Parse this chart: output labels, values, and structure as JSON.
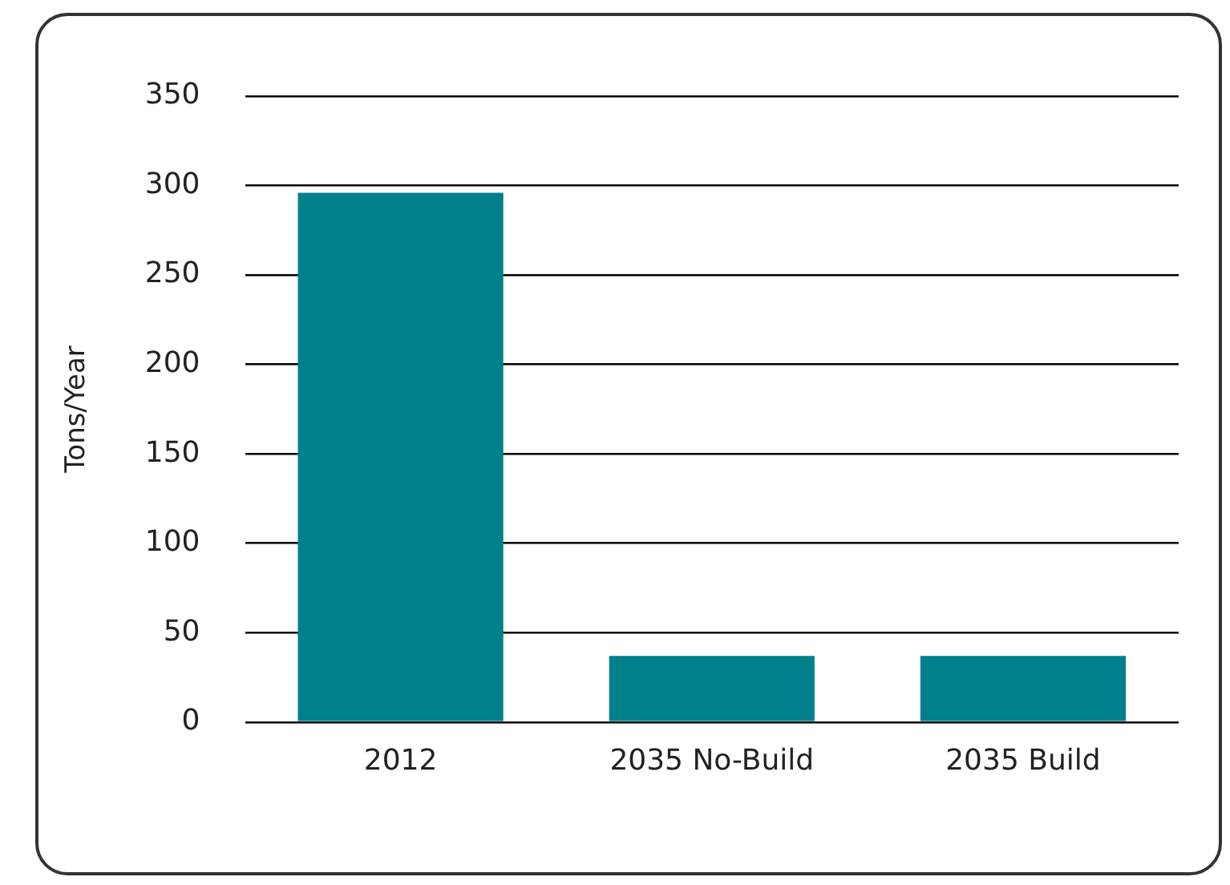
{
  "chart_data": {
    "type": "bar",
    "ylabel": "Tons/Year",
    "categories": [
      "2012",
      "2035 No-Build",
      "2035 Build"
    ],
    "values": [
      296,
      37,
      37
    ],
    "color": "#007f8c",
    "ylim": [
      0,
      350
    ],
    "yticks": [
      0,
      50,
      100,
      150,
      200,
      250,
      300,
      350
    ],
    "grid": "y"
  }
}
